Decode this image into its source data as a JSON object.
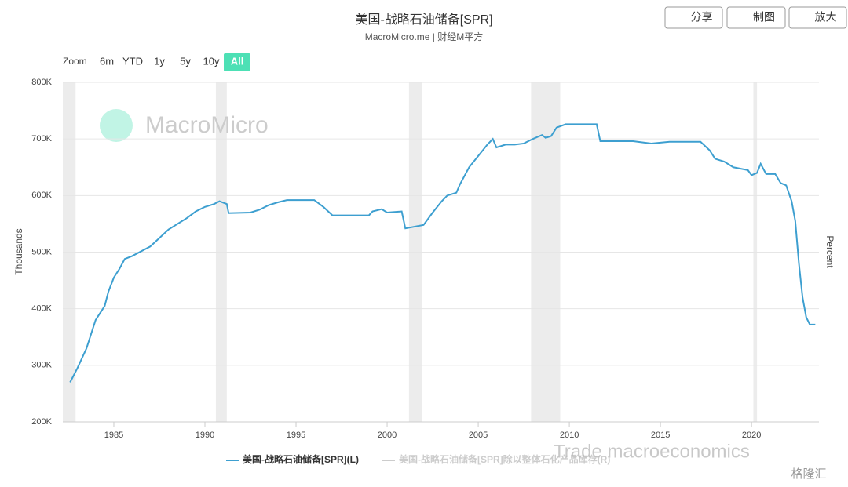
{
  "header": {
    "buttons": [
      "分享",
      "制图",
      "放大"
    ]
  },
  "zoom": {
    "label": "Zoom",
    "options": [
      "6m",
      "YTD",
      "1y",
      "5y",
      "10y",
      "All"
    ],
    "active": 5
  },
  "watermarks": [
    "MacroMicro",
    "Trade macroeconomics",
    "格隆汇"
  ],
  "chart_data": {
    "type": "line",
    "title": "美国-战略石油储备[SPR]",
    "subtitle": "MacroMicro.me | 财经M平方",
    "y_label": "Thousands",
    "y2_label": "Percent",
    "x": [
      1982.6,
      1983.0,
      1983.5,
      1984.0,
      1984.5,
      1984.7,
      1985.0,
      1985.3,
      1985.6,
      1986.0,
      1987.0,
      1987.5,
      1988.0,
      1989.0,
      1989.5,
      1990.0,
      1990.5,
      1990.8,
      1991.2,
      1991.3,
      1992.5,
      1993.0,
      1993.5,
      1994.0,
      1994.5,
      1996.0,
      1996.5,
      1997.0,
      1999.0,
      1999.2,
      1999.7,
      2000.0,
      2000.8,
      2001.0,
      2002.0,
      2002.5,
      2003.0,
      2003.3,
      2003.8,
      2004.0,
      2004.5,
      2005.0,
      2005.5,
      2005.8,
      2006.0,
      2006.5,
      2007.0,
      2007.5,
      2008.0,
      2008.5,
      2008.7,
      2009.0,
      2009.3,
      2009.8,
      2011.5,
      2011.7,
      2012.5,
      2013.5,
      2014.5,
      2015.5,
      2017.2,
      2017.7,
      2018.0,
      2018.5,
      2019.0,
      2019.8,
      2020.0,
      2020.3,
      2020.5,
      2020.8,
      2021.3,
      2021.6,
      2021.9,
      2022.2,
      2022.4,
      2022.6,
      2022.8,
      2023.0,
      2023.2,
      2023.5
    ],
    "series": [
      {
        "name": "美国-战略石油储备[SPR](L)",
        "color": "#3d9fd0",
        "values": [
          270000,
          295000,
          330000,
          380000,
          405000,
          430000,
          455000,
          470000,
          488000,
          493000,
          510000,
          525000,
          540000,
          560000,
          572000,
          580000,
          585000,
          590000,
          585000,
          569000,
          570000,
          575000,
          583000,
          588000,
          592000,
          592000,
          580000,
          565000,
          565000,
          572000,
          576000,
          570000,
          572000,
          542000,
          548000,
          570000,
          590000,
          600000,
          605000,
          620000,
          650000,
          670000,
          690000,
          700000,
          685000,
          690000,
          690000,
          692000,
          700000,
          707000,
          702000,
          705000,
          720000,
          726000,
          726000,
          696000,
          696000,
          696000,
          692000,
          695000,
          695000,
          680000,
          665000,
          660000,
          650000,
          645000,
          636000,
          640000,
          656000,
          638000,
          638000,
          622000,
          618000,
          590000,
          555000,
          480000,
          420000,
          385000,
          372000,
          372000
        ]
      },
      {
        "name": "美国-战略石油储备[SPR]除以整体石化产品库存(R)",
        "color": "#cccccc",
        "visible": false
      }
    ],
    "xlim": [
      1982.2,
      2023.7
    ],
    "xticks": [
      1985,
      1990,
      1995,
      2000,
      2005,
      2010,
      2015,
      2020
    ],
    "ylim": [
      200000,
      800000
    ],
    "yticks": [
      {
        "value": 200000,
        "label": "200K"
      },
      {
        "value": 300000,
        "label": "300K"
      },
      {
        "value": 400000,
        "label": "400K"
      },
      {
        "value": 500000,
        "label": "500K"
      },
      {
        "value": 600000,
        "label": "600K"
      },
      {
        "value": 700000,
        "label": "700K"
      },
      {
        "value": 800000,
        "label": "800K"
      }
    ],
    "grid": true,
    "shaded_ranges": [
      [
        1982.2,
        1982.9
      ],
      [
        1990.6,
        1991.2
      ],
      [
        2001.2,
        2001.9
      ],
      [
        2007.9,
        2009.5
      ],
      [
        2020.1,
        2020.3
      ]
    ],
    "shade_color": "#ececec"
  }
}
